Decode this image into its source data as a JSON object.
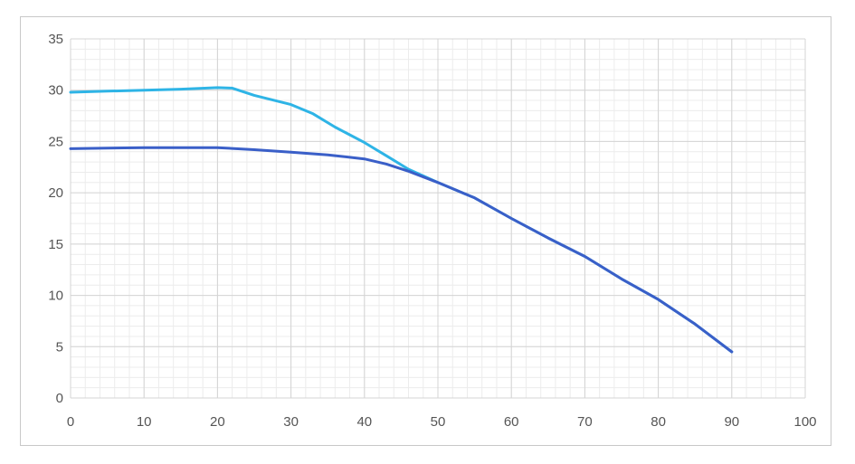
{
  "chart_data": {
    "type": "line",
    "title": "",
    "xlabel": "",
    "ylabel": "",
    "xlim": [
      0,
      100
    ],
    "ylim": [
      0,
      35
    ],
    "x_ticks": [
      0,
      10,
      20,
      30,
      40,
      50,
      60,
      70,
      80,
      90,
      100
    ],
    "y_ticks": [
      0,
      5,
      10,
      15,
      20,
      25,
      30,
      35
    ],
    "x_tick_labels": [
      "0",
      "10",
      "20",
      "30",
      "40",
      "50",
      "60",
      "70",
      "80",
      "90",
      "100"
    ],
    "y_tick_labels": [
      "0",
      "5",
      "10",
      "15",
      "20",
      "25",
      "30",
      "35"
    ],
    "grid": true,
    "minor_grid": true,
    "legend": "none",
    "series": [
      {
        "color": "#2eb4e6",
        "points": [
          [
            0,
            29.8
          ],
          [
            5,
            29.9
          ],
          [
            10,
            30.0
          ],
          [
            15,
            30.1
          ],
          [
            20,
            30.25
          ],
          [
            22,
            30.2
          ],
          [
            25,
            29.5
          ],
          [
            30,
            28.6
          ],
          [
            33,
            27.7
          ],
          [
            36,
            26.4
          ],
          [
            40,
            24.9
          ],
          [
            43,
            23.6
          ],
          [
            46,
            22.3
          ],
          [
            50,
            21.0
          ],
          [
            55,
            19.5
          ],
          [
            60,
            17.5
          ],
          [
            65,
            15.6
          ],
          [
            70,
            13.8
          ],
          [
            75,
            11.6
          ],
          [
            80,
            9.6
          ],
          [
            85,
            7.2
          ],
          [
            90,
            4.5
          ]
        ]
      },
      {
        "color": "#3a5fc8",
        "points": [
          [
            0,
            24.3
          ],
          [
            5,
            24.35
          ],
          [
            10,
            24.4
          ],
          [
            15,
            24.4
          ],
          [
            20,
            24.4
          ],
          [
            25,
            24.2
          ],
          [
            30,
            23.95
          ],
          [
            35,
            23.7
          ],
          [
            40,
            23.3
          ],
          [
            43,
            22.8
          ],
          [
            46,
            22.1
          ],
          [
            50,
            21.0
          ],
          [
            55,
            19.5
          ],
          [
            60,
            17.5
          ],
          [
            65,
            15.6
          ],
          [
            70,
            13.8
          ],
          [
            75,
            11.6
          ],
          [
            80,
            9.6
          ],
          [
            85,
            7.2
          ],
          [
            90,
            4.5
          ]
        ]
      }
    ]
  }
}
